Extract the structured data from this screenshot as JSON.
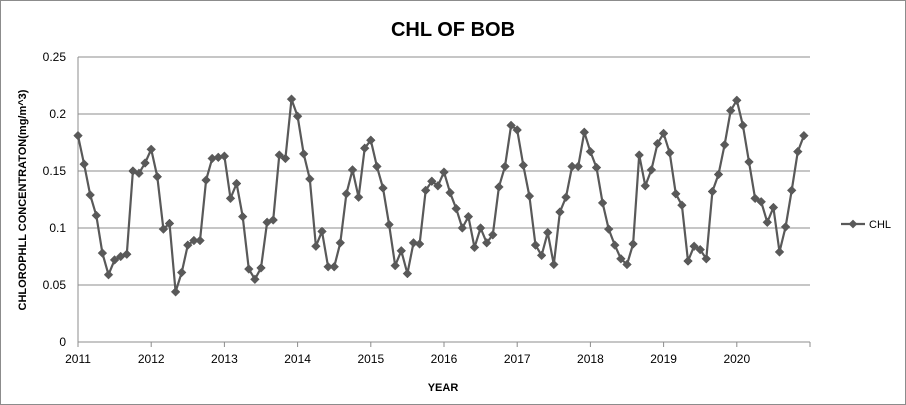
{
  "chart_data": {
    "type": "line",
    "title": "CHL OF BOB",
    "xlabel": "YEAR",
    "ylabel": "CHLOROPHLL CONCENTRATON(mg/m^3)",
    "ylim": [
      0,
      0.25
    ],
    "yticks": [
      "0",
      "0.05",
      "0.1",
      "0.15",
      "0.2",
      "0.25"
    ],
    "xlim": [
      2011,
      2021
    ],
    "xticks": [
      "2011",
      "2012",
      "2013",
      "2014",
      "2015",
      "2016",
      "2017",
      "2018",
      "2019",
      "2020"
    ],
    "grid": "horizontal",
    "legend": "right",
    "color": "#595959",
    "series": [
      {
        "name": "CHL",
        "years": [
          2011,
          2012,
          2013,
          2014,
          2015,
          2016,
          2017,
          2018,
          2019,
          2020
        ],
        "values": [
          [
            0.181,
            0.156,
            0.129,
            0.111,
            0.078,
            0.059,
            0.072,
            0.075,
            0.077,
            0.15,
            0.148,
            0.157
          ],
          [
            0.169,
            0.145,
            0.099,
            0.104,
            0.044,
            0.061,
            0.085,
            0.089,
            0.089,
            0.142,
            0.161,
            0.162
          ],
          [
            0.163,
            0.126,
            0.139,
            0.11,
            0.064,
            0.055,
            0.065,
            0.105,
            0.107,
            0.164,
            0.161,
            0.213
          ],
          [
            0.198,
            0.165,
            0.143,
            0.084,
            0.097,
            0.066,
            0.066,
            0.087,
            0.13,
            0.151,
            0.127,
            0.17
          ],
          [
            0.177,
            0.154,
            0.135,
            0.103,
            0.067,
            0.08,
            0.06,
            0.087,
            0.086,
            0.133,
            0.141,
            0.137
          ],
          [
            0.149,
            0.131,
            0.117,
            0.1,
            0.11,
            0.083,
            0.1,
            0.087,
            0.094,
            0.136,
            0.154,
            0.19
          ],
          [
            0.186,
            0.155,
            0.128,
            0.085,
            0.076,
            0.096,
            0.068,
            0.114,
            0.127,
            0.154,
            0.154,
            0.184
          ],
          [
            0.167,
            0.153,
            0.122,
            0.099,
            0.085,
            0.073,
            0.068,
            0.086,
            0.164,
            0.137,
            0.151,
            0.174
          ],
          [
            0.183,
            0.166,
            0.13,
            0.12,
            0.071,
            0.084,
            0.081,
            0.073,
            0.132,
            0.147,
            0.173,
            0.203
          ],
          [
            0.212,
            0.19,
            0.158,
            0.126,
            0.123,
            0.105,
            0.118,
            0.079,
            0.101,
            0.133,
            0.167,
            0.181
          ]
        ]
      }
    ]
  }
}
